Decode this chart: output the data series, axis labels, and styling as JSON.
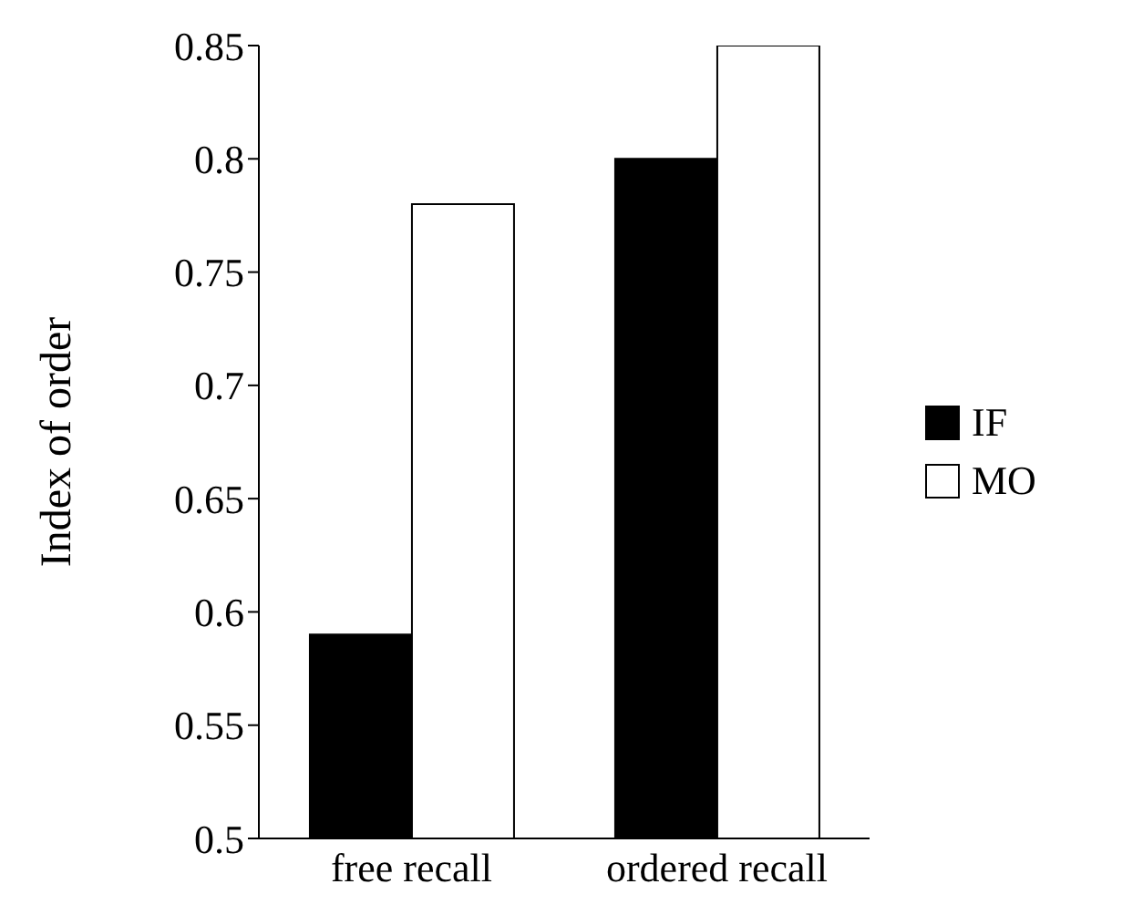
{
  "chart_data": {
    "type": "bar",
    "ylabel": "Index of order",
    "categories": [
      "free recall",
      "ordered recall"
    ],
    "series": [
      {
        "name": "IF",
        "color": "#000000",
        "values": [
          0.59,
          0.8
        ]
      },
      {
        "name": "MO",
        "color": "#ffffff",
        "values": [
          0.78,
          0.85
        ]
      }
    ],
    "ylim": [
      0.5,
      0.85
    ],
    "yticks": [
      0.5,
      0.55,
      0.6,
      0.65,
      0.7,
      0.75,
      0.8,
      0.85
    ],
    "grid": false,
    "legend": "right"
  }
}
